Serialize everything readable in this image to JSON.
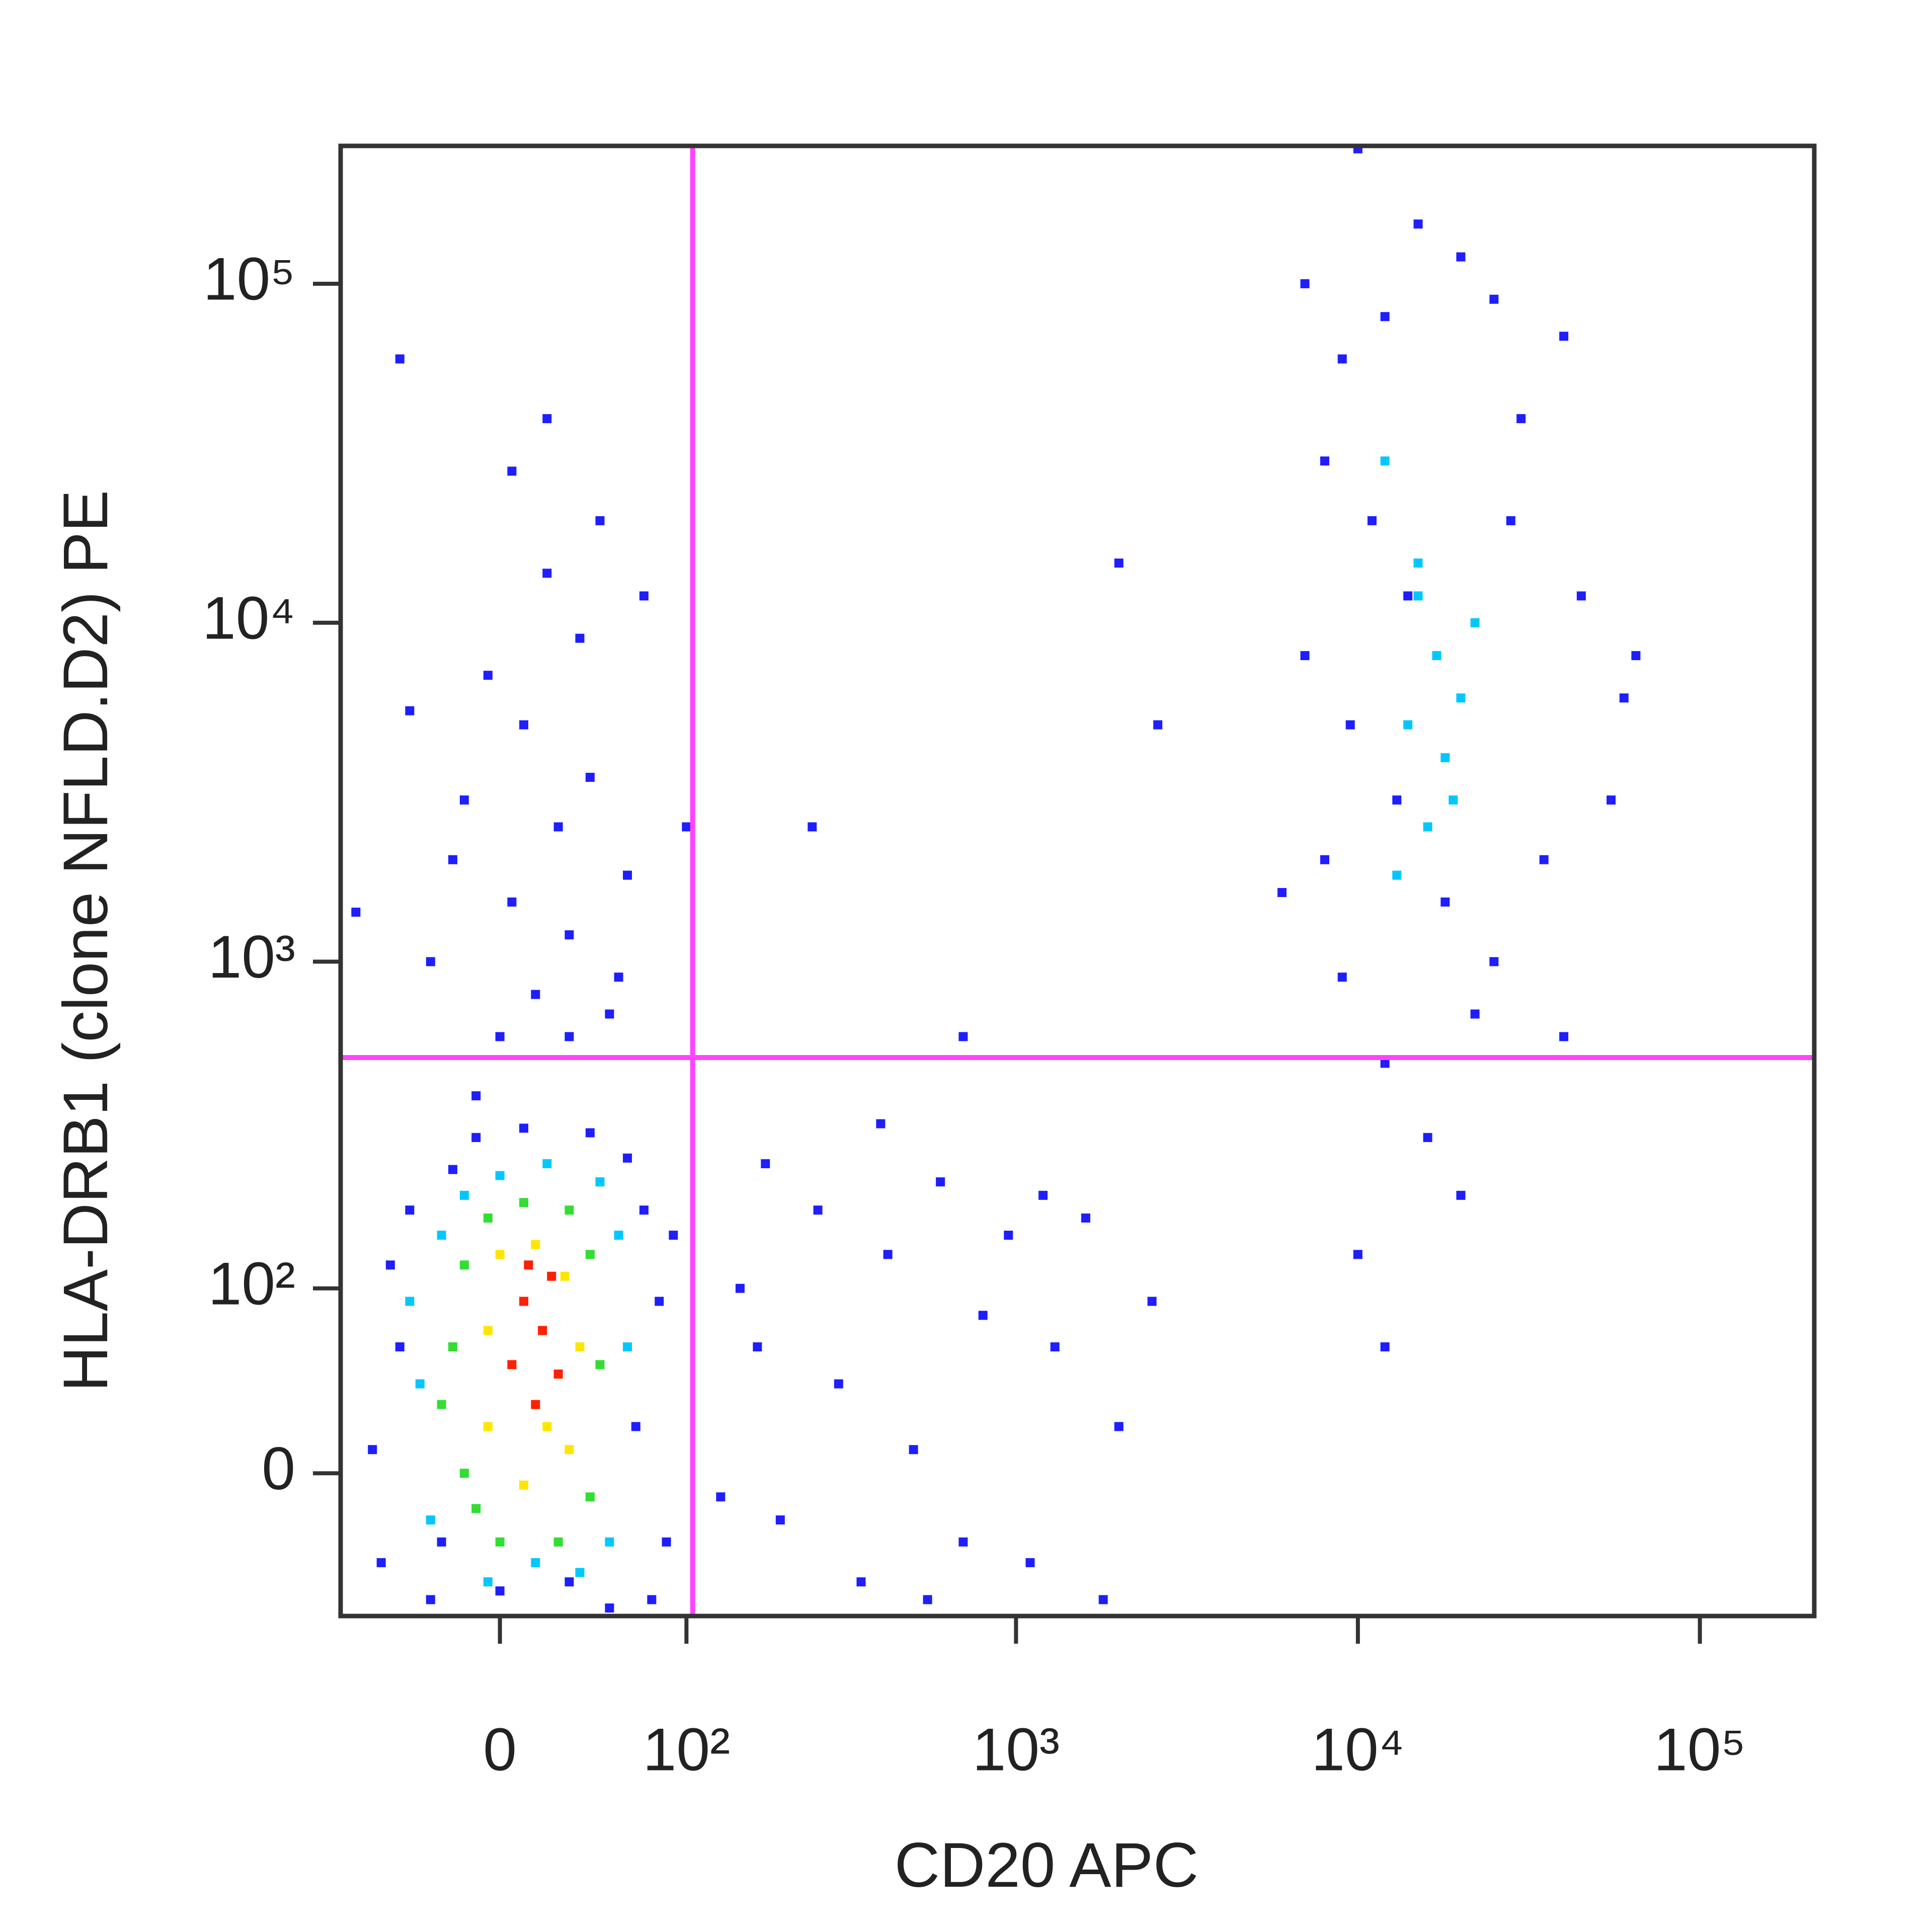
{
  "chart_data": {
    "type": "scatter",
    "xlabel": "CD20 APC",
    "ylabel": "HLA-DRB1 (clone NFLD.D2) PE",
    "xscale": "biexponential",
    "yscale": "biexponential",
    "xlim": [
      -80,
      216000
    ],
    "ylim": [
      -70,
      255000
    ],
    "xticks": [
      0,
      {
        "value": 100,
        "label": "10²"
      },
      {
        "value": 1000,
        "label": "10³"
      },
      {
        "value": 10000,
        "label": "10⁴"
      },
      {
        "value": 100000,
        "label": "10⁵"
      }
    ],
    "yticks": [
      0,
      {
        "value": 100,
        "label": "10²"
      },
      {
        "value": 1000,
        "label": "10³"
      },
      {
        "value": 10000,
        "label": "10⁴"
      },
      {
        "value": 100000,
        "label": "10⁵"
      }
    ],
    "gates": {
      "x": 105,
      "y": 520,
      "color": "#ff44ff"
    },
    "series": [
      {
        "color": "#1e1eff",
        "x": [
          -55,
          -45,
          -40,
          -30,
          -20,
          -10,
          0,
          10,
          40,
          60,
          70,
          80,
          85,
          75,
          65,
          -60,
          -50,
          90,
          50,
          -25,
          30,
          -10,
          0,
          15,
          30,
          5,
          -20,
          25,
          40,
          10,
          -5,
          35,
          20,
          -30,
          50,
          60,
          45,
          -40,
          -70,
          70,
          30,
          55,
          -15,
          20,
          -45,
          5,
          150,
          200,
          260,
          300,
          350,
          420,
          500,
          600,
          700,
          800,
          950,
          1100,
          1300,
          1600,
          2000,
          2500,
          180,
          400,
          700,
          250,
          1800,
          130,
          170,
          550,
          1200,
          2000,
          2600,
          100,
          7000,
          9000,
          10000,
          12000,
          15000,
          20000,
          25000,
          40000,
          8000,
          11000,
          14000,
          30000,
          45000,
          60000,
          55000,
          7000,
          8000,
          9000,
          12000,
          16000,
          20000,
          10000,
          12000,
          25000,
          35000,
          40000,
          9500,
          13000,
          18000,
          22000,
          28000,
          6000,
          65000
        ],
        "y": [
          -40,
          60,
          180,
          -60,
          240,
          300,
          -55,
          320,
          310,
          260,
          180,
          90,
          -30,
          -60,
          20,
          10,
          120,
          150,
          -65,
          -30,
          -50,
          400,
          600,
          800,
          1200,
          1500,
          2000,
          2500,
          3500,
          5000,
          7000,
          9000,
          14000,
          1000,
          700,
          1800,
          20000,
          5500,
          1400,
          12000,
          600,
          900,
          3000,
          40000,
          60000,
          28000,
          100,
          -20,
          180,
          40,
          -50,
          130,
          10,
          220,
          -30,
          80,
          150,
          -40,
          60,
          170,
          20,
          90,
          250,
          330,
          600,
          2500,
          -60,
          -10,
          60,
          -60,
          200,
          15000,
          5000,
          2500,
          100000,
          60000,
          250000,
          80000,
          150000,
          120000,
          90000,
          70000,
          30000,
          20000,
          12000,
          40000,
          12000,
          6000,
          3000,
          8000,
          2000,
          900,
          500,
          300,
          200,
          130,
          60,
          1000,
          2000,
          600,
          5000,
          3000,
          1500,
          700,
          20000,
          1600,
          8000
        ]
      },
      {
        "color": "#00c8ff",
        "x": [
          12000,
          15000,
          17000,
          14000,
          18000,
          20000,
          16000,
          13000,
          22000,
          15000,
          19000,
          -35,
          -25,
          -15,
          0,
          20,
          45,
          55,
          60,
          50,
          -30,
          -40,
          35,
          -5,
          15
        ],
        "y": [
          30000,
          15000,
          8000,
          5000,
          4000,
          6000,
          2500,
          1800,
          10000,
          12000,
          3000,
          40,
          150,
          200,
          230,
          250,
          220,
          150,
          60,
          -30,
          -20,
          90,
          -45,
          -50,
          -40
        ]
      },
      {
        "color": "#33dd33",
        "x": [
          -20,
          -15,
          -5,
          10,
          30,
          40,
          45,
          40,
          25,
          0,
          -15,
          -25,
          -10
        ],
        "y": [
          60,
          120,
          170,
          190,
          180,
          130,
          50,
          -10,
          -30,
          -30,
          0,
          30,
          -15
        ]
      },
      {
        "color": "#ffe600",
        "x": [
          -5,
          0,
          15,
          28,
          35,
          30,
          10,
          -5,
          20
        ],
        "y": [
          70,
          130,
          140,
          110,
          60,
          10,
          -5,
          20,
          20
        ]
      },
      {
        "color": "#ff2000",
        "x": [
          5,
          10,
          18,
          22,
          15,
          25,
          12
        ],
        "y": [
          50,
          90,
          70,
          110,
          30,
          45,
          120
        ]
      }
    ]
  }
}
